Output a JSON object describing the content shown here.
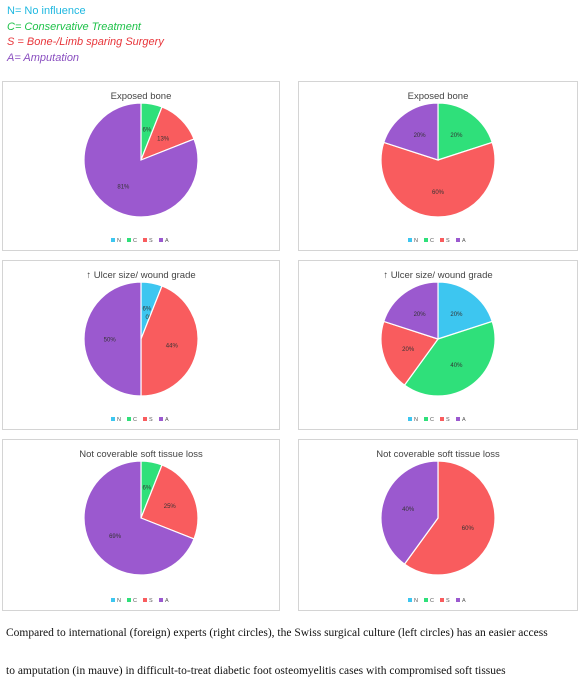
{
  "legend": {
    "n": "N= No influence",
    "c": "C= Conservative Treatment",
    "s": "S = Bone-/Limb sparing Surgery",
    "a": "A= Amputation"
  },
  "colors": {
    "N": "#3dc6f0",
    "C": "#2fe07a",
    "S": "#f95c5e",
    "A": "#9b59cf"
  },
  "caption": {
    "line1": "Compared to international (foreign) experts (right circles), the Swiss surgical culture (left circles) has an easier access",
    "line2": "to amputation (in mauve) in difficult-to-treat diabetic foot osteomyelitis cases with compromised soft tissues"
  },
  "chart_data": [
    {
      "type": "pie",
      "title": "Exposed bone",
      "categories": [
        "N",
        "C",
        "S",
        "A"
      ],
      "values": [
        0,
        6,
        13,
        81
      ],
      "labels": [
        "0%",
        "6%",
        "13%",
        "81%"
      ],
      "legend": [
        "N",
        "C",
        "S",
        "A"
      ]
    },
    {
      "type": "pie",
      "title": "Exposed bone",
      "categories": [
        "N",
        "C",
        "S",
        "A"
      ],
      "values": [
        0,
        20,
        60,
        20
      ],
      "labels": [
        "0%",
        "20%",
        "60%",
        "20%"
      ],
      "legend": [
        "N",
        "C",
        "S",
        "A"
      ]
    },
    {
      "type": "pie",
      "title": "↑ Ulcer size/ wound grade",
      "categories": [
        "N",
        "C",
        "S",
        "A"
      ],
      "values": [
        6,
        0,
        44,
        50
      ],
      "labels": [
        "6%",
        "0%",
        "44%",
        "50%"
      ],
      "legend": [
        "N",
        "C",
        "S",
        "A"
      ]
    },
    {
      "type": "pie",
      "title": "↑ Ulcer size/ wound grade",
      "categories": [
        "N",
        "C",
        "S",
        "A"
      ],
      "values": [
        20,
        40,
        20,
        20
      ],
      "labels": [
        "20%",
        "40%",
        "20%",
        "20%"
      ],
      "legend": [
        "N",
        "C",
        "S",
        "A"
      ]
    },
    {
      "type": "pie",
      "title": "Not coverable soft tissue loss",
      "categories": [
        "N",
        "C",
        "S",
        "A"
      ],
      "values": [
        0,
        6,
        25,
        69
      ],
      "labels": [
        "0%",
        "6%",
        "25%",
        "69%"
      ],
      "legend": [
        "N",
        "C",
        "S",
        "A"
      ]
    },
    {
      "type": "pie",
      "title": "Not coverable soft tissue loss",
      "categories": [
        "N",
        "C",
        "S",
        "A"
      ],
      "values": [
        0,
        0,
        60,
        40
      ],
      "labels": [
        "0%",
        "0%",
        "60%",
        "40%"
      ],
      "legend": [
        "N",
        "C",
        "S",
        "A"
      ]
    }
  ]
}
